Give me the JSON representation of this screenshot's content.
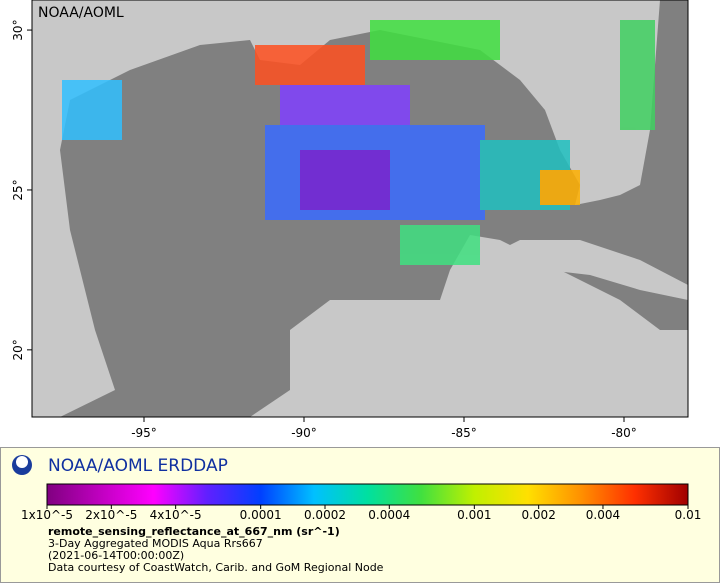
{
  "map": {
    "source_label": "NOAA/AOML",
    "lon_range": [
      -98.5,
      -78
    ],
    "lat_range": [
      17.9,
      30.94
    ],
    "lat_ticks": [
      {
        "value": 30,
        "label": "30°"
      },
      {
        "value": 25,
        "label": "25°"
      },
      {
        "value": 20,
        "label": "20°"
      }
    ],
    "lon_ticks": [
      {
        "value": -95,
        "label": "-95°"
      },
      {
        "value": -90,
        "label": "-90°"
      },
      {
        "value": -85,
        "label": "-85°"
      },
      {
        "value": -80,
        "label": "-80°"
      }
    ]
  },
  "legend": {
    "title": "NOAA/AOML ERDDAP",
    "colorbar": {
      "scale": "log",
      "range": [
        1e-05,
        0.01
      ],
      "colors": [
        "#800080",
        "#c000c0",
        "#ff00ff",
        "#6020ff",
        "#0040ff",
        "#00c0ff",
        "#00e0a0",
        "#40e040",
        "#c0f000",
        "#ffe000",
        "#ff9000",
        "#ff3000",
        "#a00000"
      ],
      "ticks": [
        {
          "value": 1e-05,
          "label": "1x10^-5"
        },
        {
          "value": 2e-05,
          "label": "2x10^-5"
        },
        {
          "value": 4e-05,
          "label": "4x10^-5"
        },
        0.0001,
        0.0002,
        0.0004,
        0.001,
        0.002,
        0.004,
        0.01
      ]
    },
    "variable": "remote_sensing_reflectance_at_667_nm (sr^-1)",
    "lines": [
      "3-Day Aggregated MODIS Aqua Rrs667",
      "(2021-06-14T00:00:00Z)",
      "Data courtesy of CoastWatch, Carib. and GoM Regional Node"
    ]
  }
}
